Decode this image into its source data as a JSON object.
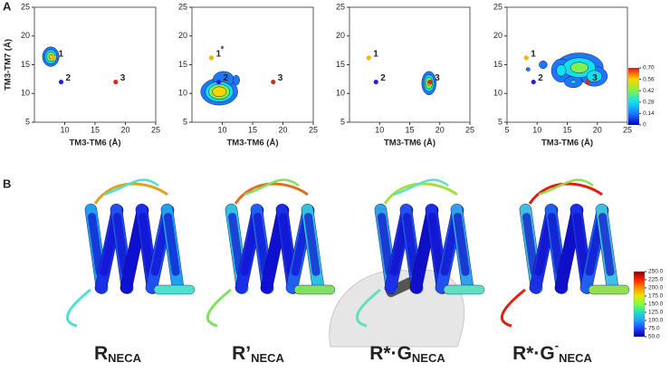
{
  "panel_labels": [
    "A",
    "B"
  ],
  "chart_data": [
    {
      "type": "contour",
      "ylabel": "TM3-TM7 (Å)",
      "xlabel": "TM3-TM6 (Å)",
      "xlim": [
        5,
        25
      ],
      "ylim": [
        5,
        25
      ],
      "xticks": [
        10,
        15,
        20,
        25
      ],
      "yticks": [
        5,
        10,
        15,
        20,
        25
      ],
      "blobs": [
        {
          "x": 7.7,
          "y": 16.4,
          "peak": 0.6,
          "sx": 0.8,
          "sy": 1.0
        }
      ],
      "points": [
        {
          "label": "1",
          "x": 8.2,
          "y": 16.2,
          "color": "#f2b705"
        },
        {
          "label": "2",
          "x": 9.4,
          "y": 12,
          "color": "#2020e0"
        },
        {
          "label": "3",
          "x": 18.4,
          "y": 12,
          "color": "#d42a1c"
        }
      ]
    },
    {
      "type": "contour",
      "xlabel": "TM3-TM6 (Å)",
      "xlim": [
        5,
        25
      ],
      "ylim": [
        5,
        25
      ],
      "xticks": [
        10,
        15,
        20,
        25
      ],
      "yticks": [
        5,
        10,
        15,
        20,
        25
      ],
      "blobs": [
        {
          "x": 9.5,
          "y": 10.3,
          "peak": 0.7,
          "sx": 1.7,
          "sy": 1.3
        },
        {
          "x": 10.2,
          "y": 12.5,
          "peak": 0.22,
          "sx": 1.8,
          "sy": 1.4
        },
        {
          "x": 12.3,
          "y": 12.3,
          "peak": 0.17,
          "sx": 0.9,
          "sy": 1.4
        },
        {
          "x": 10,
          "y": 18,
          "peak": 0.16,
          "sx": 0.3,
          "sy": 0.5
        }
      ],
      "points": [
        {
          "label": "1",
          "x": 8.2,
          "y": 16.2,
          "color": "#f2b705"
        },
        {
          "label": "2",
          "x": 9.4,
          "y": 12,
          "color": "#2020e0"
        },
        {
          "label": "3",
          "x": 18.4,
          "y": 12,
          "color": "#d42a1c"
        }
      ]
    },
    {
      "type": "contour",
      "xlabel": "TM3-TM6 (Å)",
      "xlim": [
        5,
        25
      ],
      "ylim": [
        5,
        25
      ],
      "xticks": [
        10,
        15,
        20,
        25
      ],
      "yticks": [
        5,
        10,
        15,
        20,
        25
      ],
      "blobs": [
        {
          "x": 18.2,
          "y": 11.8,
          "peak": 0.6,
          "sx": 0.7,
          "sy": 1.2
        }
      ],
      "points": [
        {
          "label": "1",
          "x": 8.2,
          "y": 16.2,
          "color": "#f2b705"
        },
        {
          "label": "2",
          "x": 9.4,
          "y": 12,
          "color": "#2020e0"
        },
        {
          "label": "3",
          "x": 18.4,
          "y": 12,
          "color": "#d42a1c"
        }
      ]
    },
    {
      "type": "contour",
      "xlabel": "TM3-TM6 (Å)",
      "xlim": [
        5,
        25
      ],
      "ylim": [
        5,
        25
      ],
      "xticks": [
        5,
        10,
        15,
        20,
        25
      ],
      "yticks": [
        5,
        10,
        15,
        20,
        25
      ],
      "blobs": [
        {
          "x": 17,
          "y": 14.5,
          "peak": 0.5,
          "sx": 2.5,
          "sy": 1.6
        },
        {
          "x": 14,
          "y": 14,
          "peak": 0.35,
          "sx": 1.2,
          "sy": 1.5
        },
        {
          "x": 19.5,
          "y": 13,
          "peak": 0.4,
          "sx": 1.5,
          "sy": 1.2
        },
        {
          "x": 11,
          "y": 15,
          "peak": 0.2,
          "sx": 0.8,
          "sy": 0.8
        },
        {
          "x": 16,
          "y": 12,
          "peak": 0.3,
          "sx": 1.2,
          "sy": 0.8
        },
        {
          "x": 8.5,
          "y": 14.2,
          "peak": 0.17,
          "sx": 0.5,
          "sy": 0.5
        }
      ],
      "points": [
        {
          "label": "1",
          "x": 8.2,
          "y": 16.2,
          "color": "#f2b705"
        },
        {
          "label": "2",
          "x": 9.4,
          "y": 12,
          "color": "#2020e0"
        },
        {
          "label": "3",
          "x": 18.4,
          "y": 12,
          "color": "#d42a1c"
        }
      ],
      "colorbar": {
        "ticks": [
          0,
          0.14,
          0.28,
          0.42,
          0.56,
          {
            "value": 0.7,
            "label": "0.70"
          }
        ],
        "colors": [
          "#0000c8",
          "#1e78ff",
          "#10e0f0",
          "#80f050",
          "#ffd400",
          "#e81010"
        ]
      }
    }
  ],
  "structures": [
    {
      "label": "R",
      "sub": "NECA"
    },
    {
      "label": "R’",
      "sub": "NECA"
    },
    {
      "label": "R*·G",
      "sub": "NECA"
    },
    {
      "label": "R*·G",
      "sup": "-",
      "sub": "NECA"
    }
  ],
  "bfactor_colorbar": {
    "ticks": [
      {
        "value": 250,
        "label": "250.0"
      },
      {
        "value": 225,
        "label": "225.0"
      },
      {
        "value": 200,
        "label": "200.0"
      },
      {
        "value": 175,
        "label": "175.0"
      },
      {
        "value": 150,
        "label": "150.0"
      },
      {
        "value": 125,
        "label": "125.0"
      },
      {
        "value": 100,
        "label": "100.0"
      },
      {
        "value": 75,
        "label": "75.0"
      },
      {
        "value": 50,
        "label": "50.0"
      }
    ],
    "colors": [
      "#8b0000",
      "#ff2000",
      "#ff9000",
      "#e8e800",
      "#80ff40",
      "#20e0c0",
      "#20a0ff",
      "#2040ff",
      "#0000a0"
    ]
  }
}
